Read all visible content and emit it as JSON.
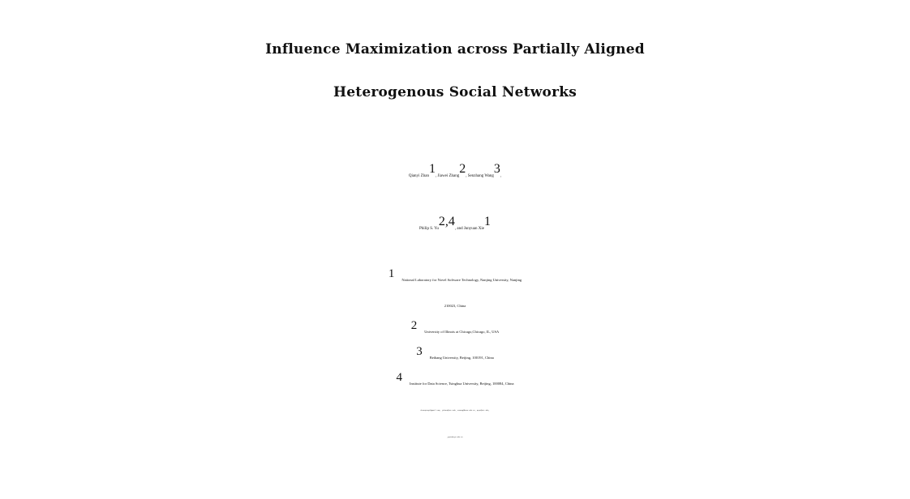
{
  "title": {
    "line1": "Influence Maximization across Partially Aligned",
    "line2": "Heterogenous Social Networks"
  },
  "authors": [
    {
      "name": "Qianyi Zhan",
      "mark": "1",
      "sep": ", "
    },
    {
      "name": "Jiawei Zhang",
      "mark": "2",
      "sep": ", "
    },
    {
      "name": "Senzhang Wang",
      "mark": "3",
      "sep": ","
    },
    {
      "name": "Philip S. Yu",
      "mark": "2,4",
      "sep": ", and "
    },
    {
      "name": "Junyuan Xie",
      "mark": "1",
      "sep": ""
    }
  ],
  "affiliations": [
    {
      "mark": "1",
      "text": "National Laboratory for Novel Software Technology, Nanjing University, Nanjing",
      "cont": "210023, China"
    },
    {
      "mark": "2",
      "text": "University of Illinois at Chicago,Chicago, IL, USA"
    },
    {
      "mark": "3",
      "text": "Beihang University, Beijing, 100191, China"
    },
    {
      "mark": "4",
      "text": "Institute for Data Science, Tsinghua University, Beijing, 100084, China"
    }
  ],
  "emails": {
    "line1": "zhanqianyi@gmail.com, jzhan9@uic.edu, szwang@buaa.edu.cn, psyu@uic.edu,",
    "line2": "jyxie@nju.edu.cn"
  }
}
